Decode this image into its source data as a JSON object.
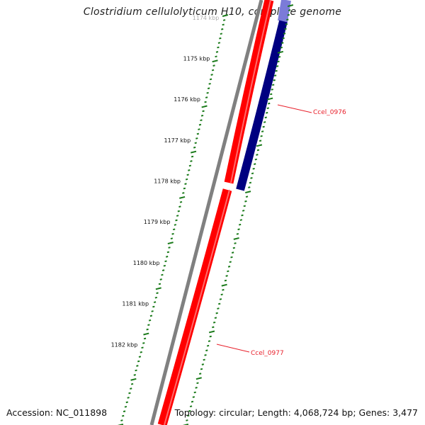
{
  "title": "Clostridium cellulolyticum H10, complete genome",
  "ticks": [
    {
      "kbp": 1174,
      "label": "1174 kbp"
    },
    {
      "kbp": 1175,
      "label": "1175 kbp"
    },
    {
      "kbp": 1176,
      "label": "1176 kbp"
    },
    {
      "kbp": 1177,
      "label": "1177 kbp"
    },
    {
      "kbp": 1178,
      "label": "1178 kbp"
    },
    {
      "kbp": 1179,
      "label": "1179 kbp"
    },
    {
      "kbp": 1180,
      "label": "1180 kbp"
    },
    {
      "kbp": 1181,
      "label": "1181 kbp"
    },
    {
      "kbp": 1182,
      "label": "1182 kbp"
    }
  ],
  "genes": [
    {
      "name": "Ccel_0976",
      "color": "#e8202b",
      "strand": "reverse",
      "track_color": "#000080"
    },
    {
      "name": "Ccel_0977",
      "color": "#e8202b",
      "strand": "forward",
      "track_color": "#ff0000"
    }
  ],
  "footer": {
    "accession": "Accession: NC_011898",
    "summary": "Topology: circular; Length: 4,068,724 bp; Genes: 3,477"
  },
  "colors": {
    "backbone": "#808080",
    "forward_cds": "#ff0000",
    "reverse_cds": "#000080",
    "reverse_cds_light": "#7b7bd8",
    "tick_mark": "#1a7a1a",
    "label_line": "#e8202b"
  }
}
